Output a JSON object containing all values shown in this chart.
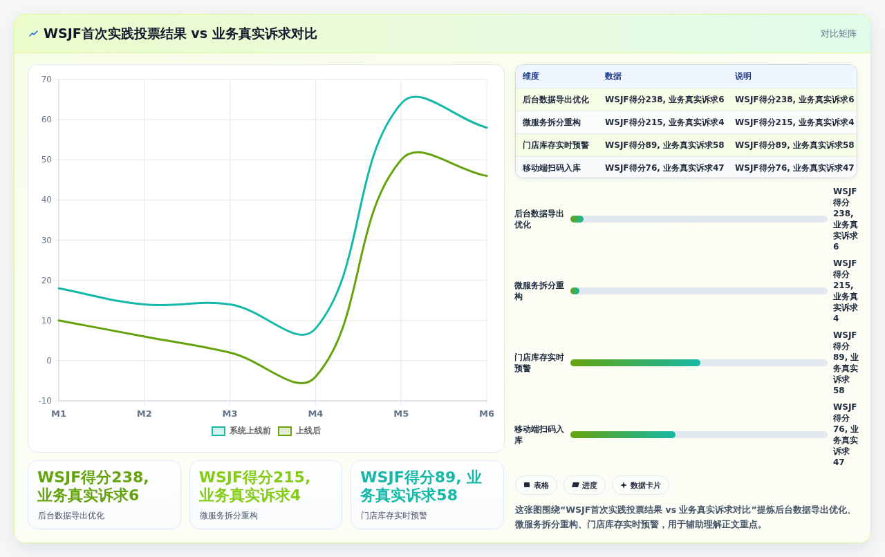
{
  "chart_data": [
    {
      "type": "other",
      "title": "WSJF首次实践投票结果 vs 业务真实诉求对比",
      "subtitle": "对比矩阵",
      "annotations": [
        "表格",
        "进度",
        "数据卡片",
        "这张图围绕“WSJF首次实践投票结果 vs 业务真实诉求对比”提炼后台数据导出优化、微服务拆分重构、门店库存实时预警，用于辅助理解正文重点。"
      ]
    },
    {
      "type": "line",
      "categories": [
        "M1",
        "M2",
        "M3",
        "M4",
        "M5",
        "M6"
      ],
      "series": [
        {
          "name": "系统上线前",
          "color": "#14b8a6",
          "values": [
            18,
            14,
            14,
            8,
            64,
            58
          ]
        },
        {
          "name": "上线后",
          "color": "#65a30d",
          "values": [
            10,
            6,
            2,
            -4,
            50,
            46
          ]
        }
      ],
      "ylim": [
        -10,
        70
      ],
      "yticks": [
        -10,
        0,
        10,
        20,
        30,
        40,
        50,
        60,
        70
      ],
      "grid": true,
      "legend": "bottom"
    },
    {
      "type": "other",
      "categories": [
        "维度",
        "数据",
        "说明"
      ],
      "y_categories": [
        "后台数据导出优化",
        "微服务拆分重构",
        "门店库存实时预警",
        "移动端扫码入库"
      ],
      "cell_labels": [
        [
          "WSJF得分238, 业务真实诉求6",
          "WSJF得分238, 业务真实诉求6"
        ],
        [
          "WSJF得分215, 业务真实诉求4",
          "WSJF得分215, 业务真实诉求4"
        ],
        [
          "WSJF得分89, 业务真实诉求58",
          "WSJF得分89, 业务真实诉求58"
        ],
        [
          "WSJF得分76, 业务真实诉求47",
          "WSJF得分76, 业务真实诉求47"
        ]
      ]
    },
    {
      "type": "bar",
      "orientation": "horizontal",
      "categories": [
        "后台数据导出优化",
        "微服务拆分重构",
        "门店库存实时预警",
        "移动端扫码入库"
      ],
      "values": [
        6,
        4,
        58,
        47
      ],
      "value_labels": [
        "WSJF得分238, 业务真实诉求6",
        "WSJF得分215, 业务真实诉求4",
        "WSJF得分89, 业务真实诉求58",
        "WSJF得分76, 业务真实诉求47"
      ],
      "color": "#65a30d",
      "xlim": [
        0,
        115
      ],
      "tick_labels": "y"
    },
    {
      "type": "other",
      "categories": [
        "WSJF得分238, 业务真实诉求6",
        "WSJF得分215, 业务真实诉求4",
        "WSJF得分89, 业务真实诉求58"
      ],
      "value_labels": [
        "后台数据导出优化",
        "微服务拆分重构",
        "门店库存实时预警"
      ]
    }
  ]
}
